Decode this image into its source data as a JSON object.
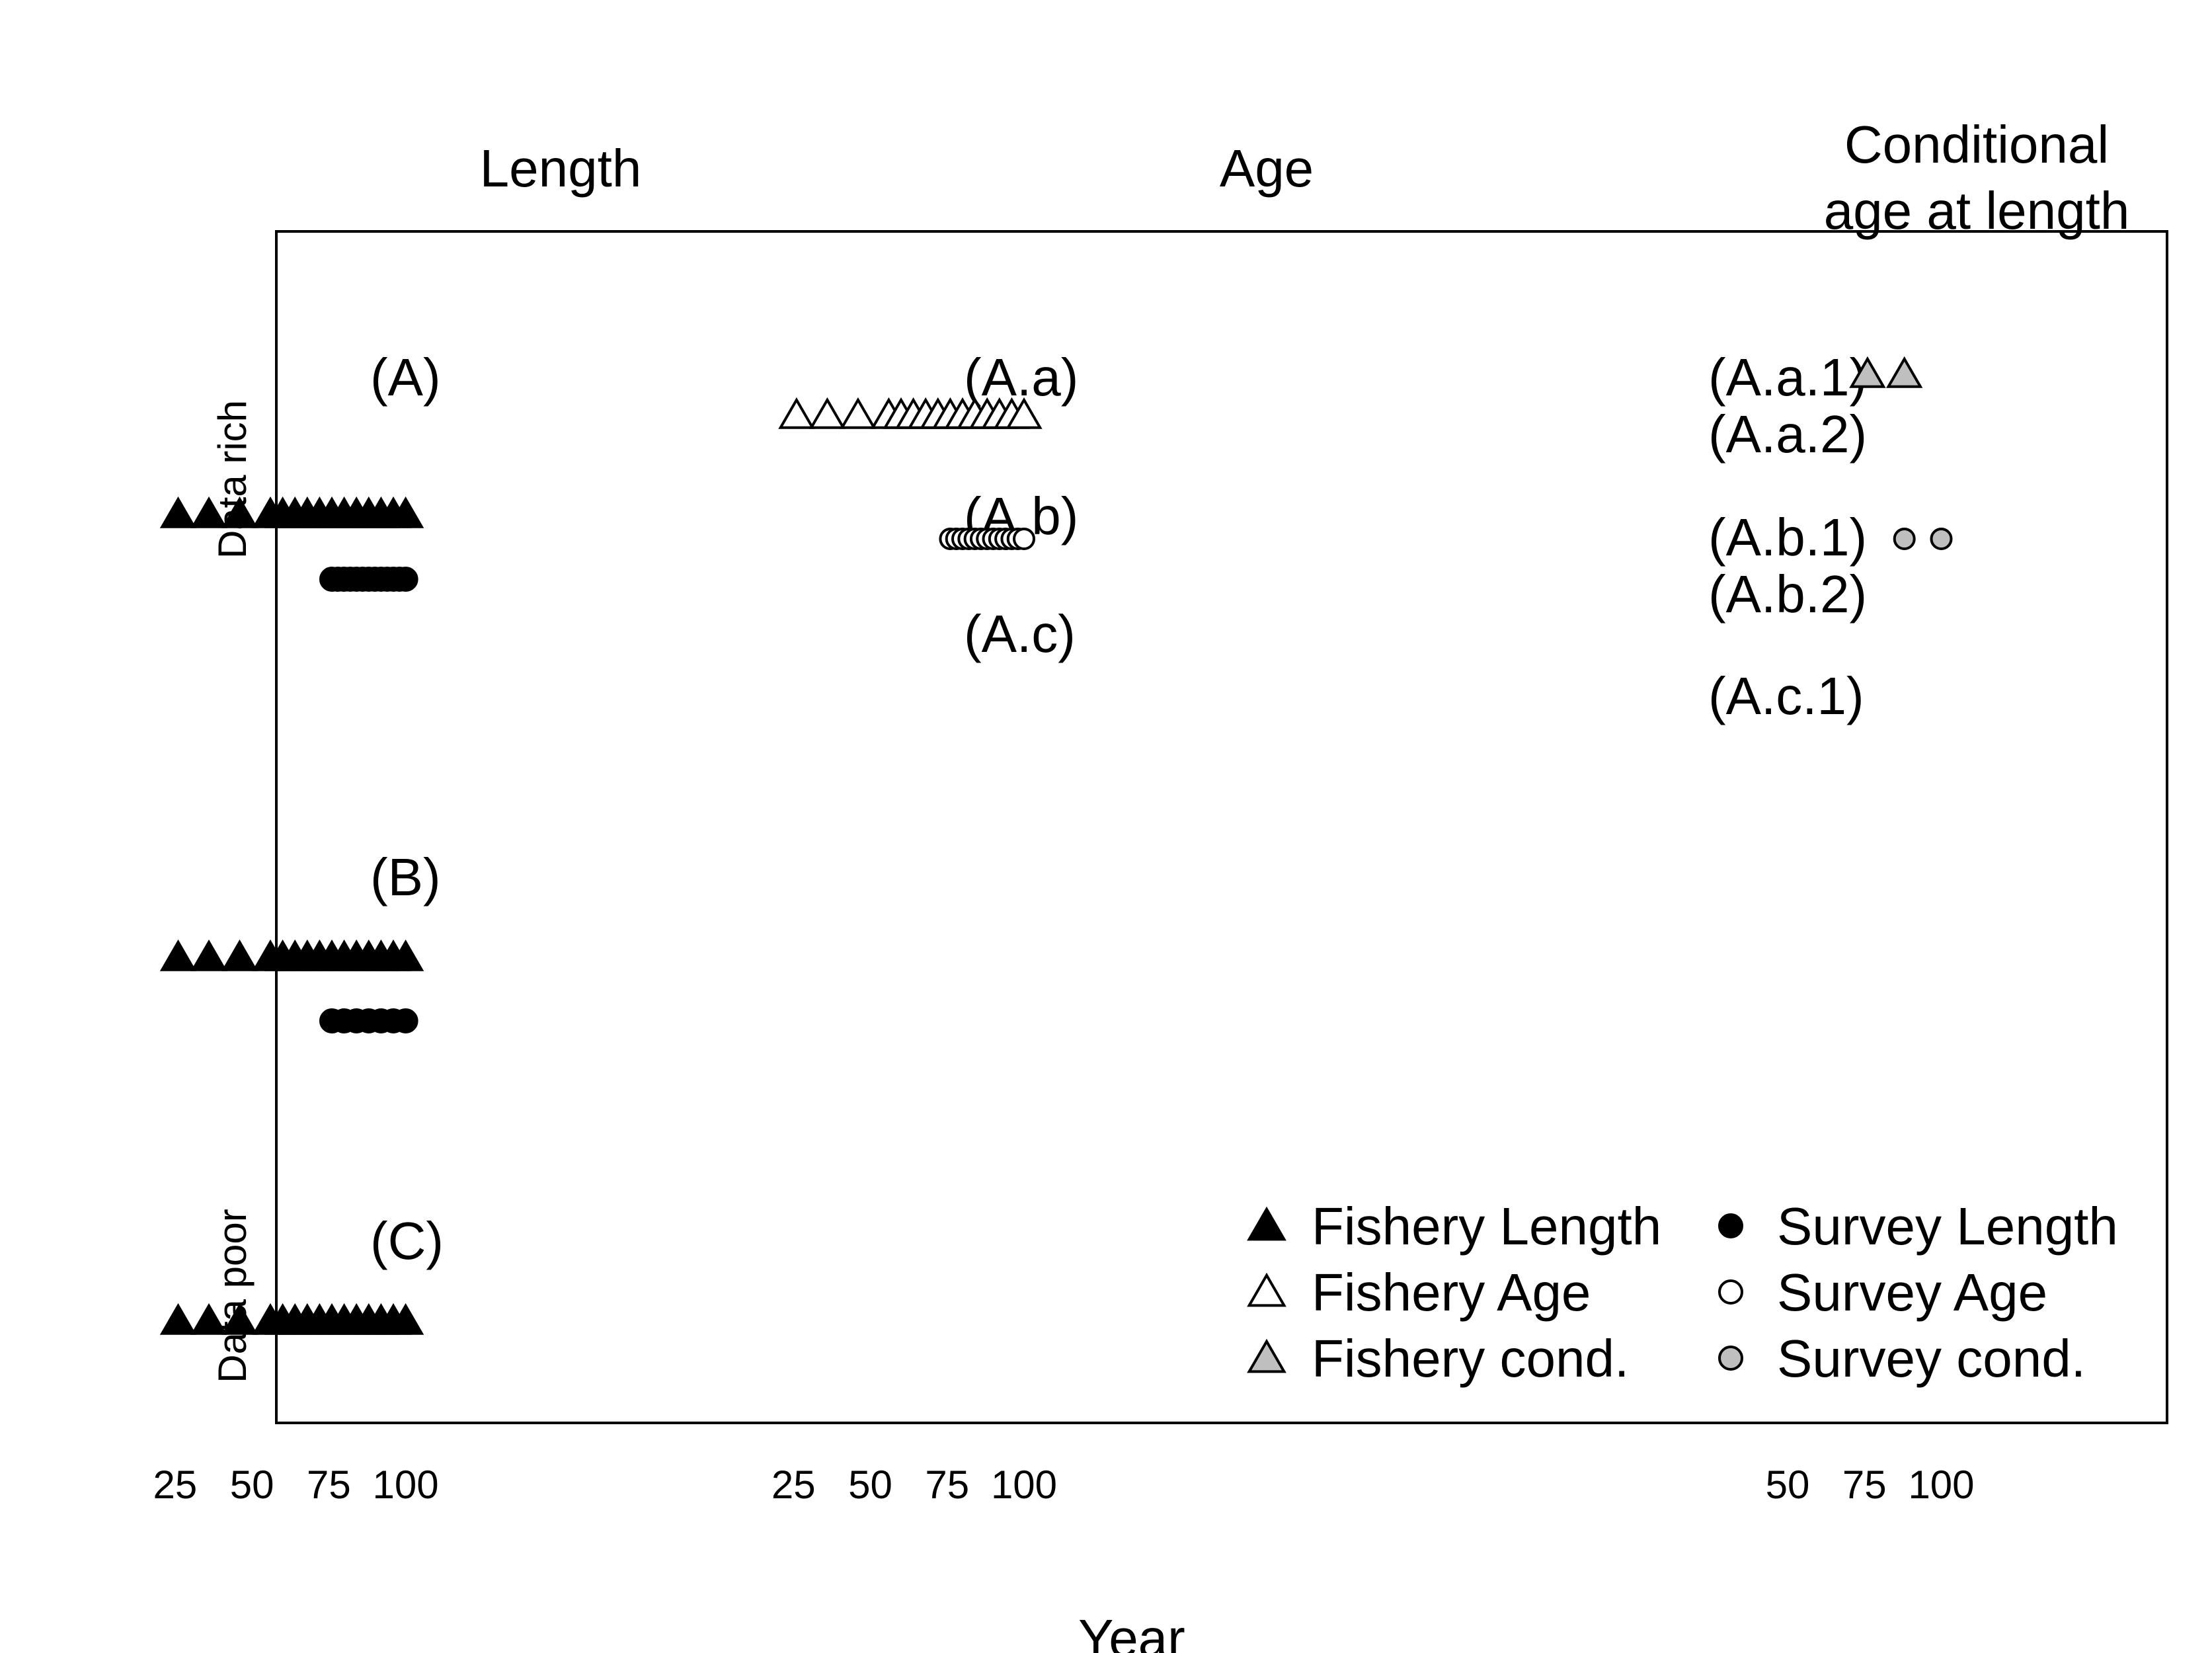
{
  "chart_data": {
    "type": "scatter",
    "xlabel": "Year",
    "column_headers": [
      "Length",
      "Age",
      "Conditional\nage at length"
    ],
    "side_labels": {
      "top": "Data rich",
      "bottom": "Data poor"
    },
    "colors": {
      "filled": "#000000",
      "open": "#ffffff",
      "cond": "#bfbfbf",
      "stroke": "#000000"
    },
    "panels": [
      {
        "name": "length",
        "xlim": [
          0,
          115
        ],
        "ticks": [
          25,
          50,
          75,
          100
        ]
      },
      {
        "name": "age",
        "xlim": [
          0,
          115
        ],
        "ticks": [
          25,
          50,
          75,
          100
        ]
      },
      {
        "name": "conditional",
        "xlim": [
          40,
          115
        ],
        "ticks": [
          50,
          75,
          100
        ]
      }
    ],
    "scenario_labels": [
      {
        "text": "(A)",
        "panel": "length"
      },
      {
        "text": "(B)",
        "panel": "length"
      },
      {
        "text": "(C)",
        "panel": "length"
      },
      {
        "text": "(A.a)",
        "panel": "age"
      },
      {
        "text": "(A.b)",
        "panel": "age"
      },
      {
        "text": "(A.c)",
        "panel": "age"
      },
      {
        "text": "(A.a.1)",
        "panel": "conditional"
      },
      {
        "text": "(A.a.2)",
        "panel": "conditional"
      },
      {
        "text": "(A.b.1)",
        "panel": "conditional"
      },
      {
        "text": "(A.b.2)",
        "panel": "conditional"
      },
      {
        "text": "(A.c.1)",
        "panel": "conditional"
      }
    ],
    "series": [
      {
        "scenario": "A",
        "panel": "length",
        "kind": "Fishery Length",
        "marker": "triangle",
        "fill": "black",
        "years": [
          26,
          36,
          46,
          56,
          60,
          64,
          68,
          72,
          76,
          80,
          84,
          88,
          92,
          96,
          100
        ]
      },
      {
        "scenario": "A",
        "panel": "length",
        "kind": "Survey Length",
        "marker": "circle",
        "fill": "black",
        "years": [
          76,
          78,
          80,
          82,
          84,
          86,
          88,
          90,
          92,
          94,
          96,
          98,
          100
        ]
      },
      {
        "scenario": "B",
        "panel": "length",
        "kind": "Fishery Length",
        "marker": "triangle",
        "fill": "black",
        "years": [
          26,
          36,
          46,
          56,
          60,
          64,
          68,
          72,
          76,
          80,
          84,
          88,
          92,
          96,
          100
        ]
      },
      {
        "scenario": "B",
        "panel": "length",
        "kind": "Survey Length",
        "marker": "circle",
        "fill": "black",
        "years": [
          76,
          80,
          84,
          88,
          92,
          96,
          100
        ]
      },
      {
        "scenario": "C",
        "panel": "length",
        "kind": "Fishery Length",
        "marker": "triangle",
        "fill": "black",
        "years": [
          26,
          36,
          46,
          56,
          60,
          64,
          68,
          72,
          76,
          80,
          84,
          88,
          92,
          96,
          100
        ]
      },
      {
        "scenario": "A.a",
        "panel": "age",
        "kind": "Fishery Age",
        "marker": "triangle",
        "fill": "open",
        "years": [
          26,
          36,
          46,
          56,
          60,
          64,
          68,
          72,
          76,
          80,
          84,
          88,
          92,
          96,
          100
        ]
      },
      {
        "scenario": "A.b",
        "panel": "age",
        "kind": "Survey Age",
        "marker": "circle",
        "fill": "open",
        "years": [
          76,
          78,
          80,
          82,
          84,
          86,
          88,
          90,
          92,
          94,
          96,
          98,
          100
        ]
      },
      {
        "scenario": "A.a.1",
        "panel": "conditional",
        "kind": "Fishery cond.",
        "marker": "triangle",
        "fill": "grey",
        "years": [
          76,
          88
        ]
      },
      {
        "scenario": "A.b.1",
        "panel": "conditional",
        "kind": "Survey cond.",
        "marker": "circle",
        "fill": "grey",
        "years": [
          88,
          100
        ]
      }
    ],
    "legend": {
      "position": "bottom-right",
      "entries": [
        {
          "label": "Fishery Length",
          "marker": "triangle",
          "fill": "black"
        },
        {
          "label": "Fishery Age",
          "marker": "triangle",
          "fill": "open"
        },
        {
          "label": "Fishery cond.",
          "marker": "triangle",
          "fill": "grey"
        },
        {
          "label": "Survey Length",
          "marker": "circle",
          "fill": "black"
        },
        {
          "label": "Survey Age",
          "marker": "circle",
          "fill": "open"
        },
        {
          "label": "Survey cond.",
          "marker": "circle",
          "fill": "grey"
        }
      ]
    }
  }
}
